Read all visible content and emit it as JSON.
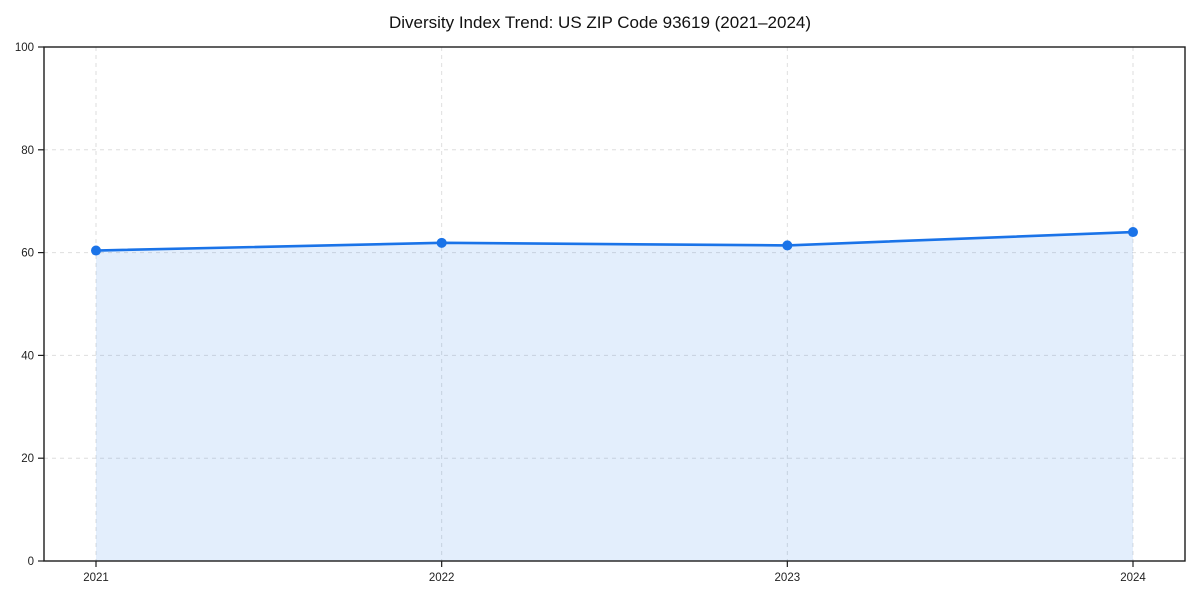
{
  "chart_data": {
    "type": "line",
    "title": "Diversity Index Trend: US ZIP Code 93619 (2021–2024)",
    "categories": [
      "2021",
      "2022",
      "2023",
      "2024"
    ],
    "series": [
      {
        "name": "Diversity Index",
        "values": [
          60.4,
          61.9,
          61.4,
          64.0
        ]
      }
    ],
    "xlabel": "",
    "ylabel": "",
    "ylim": [
      0,
      100
    ],
    "yticks": [
      0,
      20,
      40,
      60,
      80,
      100
    ],
    "grid": "dashed light-gray gridlines on both axes",
    "legend": "none",
    "markers": true,
    "area_fill": true,
    "frame": "full box frame",
    "colors": {
      "line": "#1a73e8",
      "marker": "#1a73e8",
      "area_fill": "rgba(26,115,232,0.12)",
      "gridline": "#dedede",
      "spine": "#1c1c1c",
      "tick_text": "#1f1f1f",
      "background": "#ffffff"
    }
  }
}
